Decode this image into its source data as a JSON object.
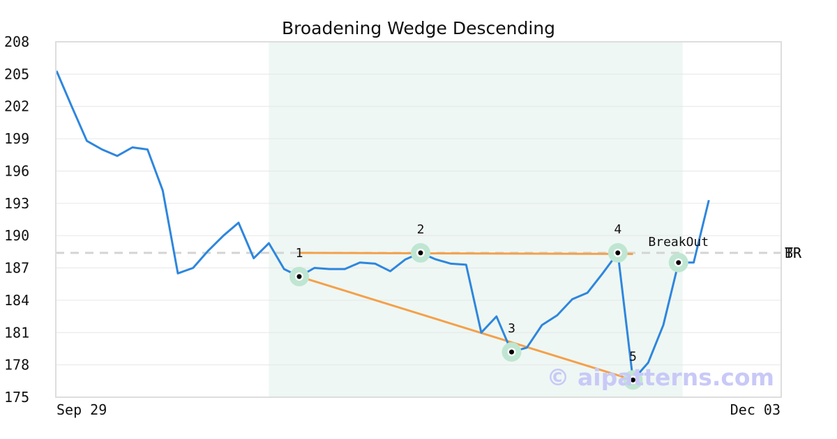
{
  "chart_data": {
    "type": "line",
    "title": "Broadening Wedge Descending",
    "xlabel": "",
    "ylabel": "",
    "ylim": [
      175,
      208
    ],
    "yticks": [
      175,
      178,
      181,
      184,
      187,
      190,
      193,
      196,
      199,
      202,
      205,
      208
    ],
    "xtick_labels": [
      "Sep 29",
      "Dec 03"
    ],
    "grid": true,
    "series": [
      {
        "values": [
          205.3,
          202.0,
          198.8,
          198.0,
          197.4,
          198.2,
          198.0,
          194.2,
          186.5,
          187.0,
          188.6,
          190.0,
          191.2,
          187.9,
          189.3,
          186.9,
          186.2,
          187.0,
          186.9,
          186.9,
          187.5,
          187.4,
          186.7,
          187.8,
          188.4,
          187.8,
          187.4,
          187.3,
          181.0,
          182.5,
          179.2,
          179.6,
          181.7,
          182.6,
          184.1,
          184.7,
          186.5,
          188.4,
          176.6,
          178.2,
          181.7,
          187.5,
          187.5,
          193.3
        ],
        "color": "#2e86de"
      }
    ],
    "highlight_range": {
      "from_index": 14,
      "to_index": 41,
      "color": "#eef7f3"
    },
    "pattern_points": [
      {
        "label": "1",
        "index": 16,
        "value": 186.2
      },
      {
        "label": "2",
        "index": 24,
        "value": 188.4
      },
      {
        "label": "3",
        "index": 30,
        "value": 179.2
      },
      {
        "label": "4",
        "index": 37,
        "value": 188.4
      },
      {
        "label": "5",
        "index": 38,
        "value": 176.6
      },
      {
        "label": "BreakOut",
        "index": 41,
        "value": 187.5
      }
    ],
    "upper_line": {
      "from": {
        "index": 16,
        "value": 188.4
      },
      "to": {
        "index": 38,
        "value": 188.3
      },
      "color": "#f4a04a"
    },
    "lower_line": {
      "from": {
        "index": 16,
        "value": 186.2
      },
      "to": {
        "index": 38,
        "value": 176.6
      },
      "color": "#f4a04a"
    },
    "breakout_level": {
      "value": 188.4,
      "labels": [
        "TR",
        "BR"
      ]
    },
    "watermark": "© aipatterns.com"
  }
}
